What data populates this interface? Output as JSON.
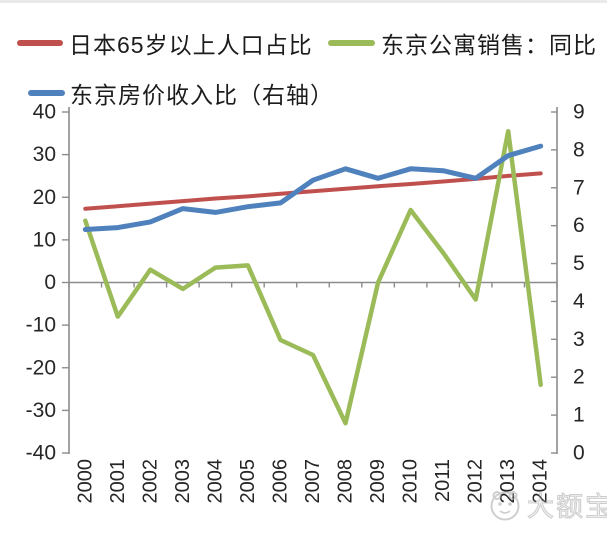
{
  "legend": {
    "items": [
      {
        "label": "日本65岁以上人口占比",
        "color": "#C0504D"
      },
      {
        "label": "东京公寓销售：同比",
        "color": "#9BBB59"
      },
      {
        "label": "东京房价收入比（右轴）",
        "color": "#4F81BD"
      }
    ]
  },
  "chart_data": {
    "type": "line",
    "title": "",
    "categories": [
      "2000",
      "2001",
      "2002",
      "2003",
      "2004",
      "2005",
      "2006",
      "2007",
      "2008",
      "2009",
      "2010",
      "2011",
      "2012",
      "2013",
      "2014"
    ],
    "series": [
      {
        "name": "日本65岁以上人口占比",
        "axis": "left",
        "color": "#C0504D",
        "values": [
          17.3,
          17.9,
          18.5,
          19.1,
          19.7,
          20.2,
          20.8,
          21.4,
          22.0,
          22.6,
          23.1,
          23.7,
          24.3,
          25.0,
          25.6
        ]
      },
      {
        "name": "东京公寓销售：同比",
        "axis": "left",
        "color": "#9BBB59",
        "values": [
          14.5,
          -8,
          3,
          -1.5,
          3.5,
          4,
          -13.5,
          -17,
          -33,
          0,
          17,
          7,
          -4,
          35.5,
          -24
        ]
      },
      {
        "name": "东京房价收入比（右轴）",
        "axis": "right",
        "color": "#4F81BD",
        "values": [
          5.9,
          5.95,
          6.1,
          6.45,
          6.35,
          6.5,
          6.6,
          7.2,
          7.5,
          7.25,
          7.5,
          7.45,
          7.25,
          7.85,
          8.1
        ]
      }
    ],
    "left_axis": {
      "min": -40,
      "max": 40,
      "step": 10,
      "tick_labels": [
        "40",
        "30",
        "20",
        "10",
        "0",
        "-10",
        "-20",
        "-30",
        "-40"
      ]
    },
    "right_axis": {
      "min": 0,
      "max": 9,
      "step": 1,
      "tick_labels": [
        "9",
        "8",
        "7",
        "6",
        "5",
        "4",
        "3",
        "2",
        "1",
        "0"
      ]
    },
    "x_axis": {
      "label_rotation": -90,
      "baseline_at": 0
    },
    "grid": "zero-baseline-only",
    "legend_position": "top-left",
    "axis_color": "#8c8c8c",
    "label_color": "#262626"
  },
  "watermark": {
    "text": "大额宝"
  }
}
